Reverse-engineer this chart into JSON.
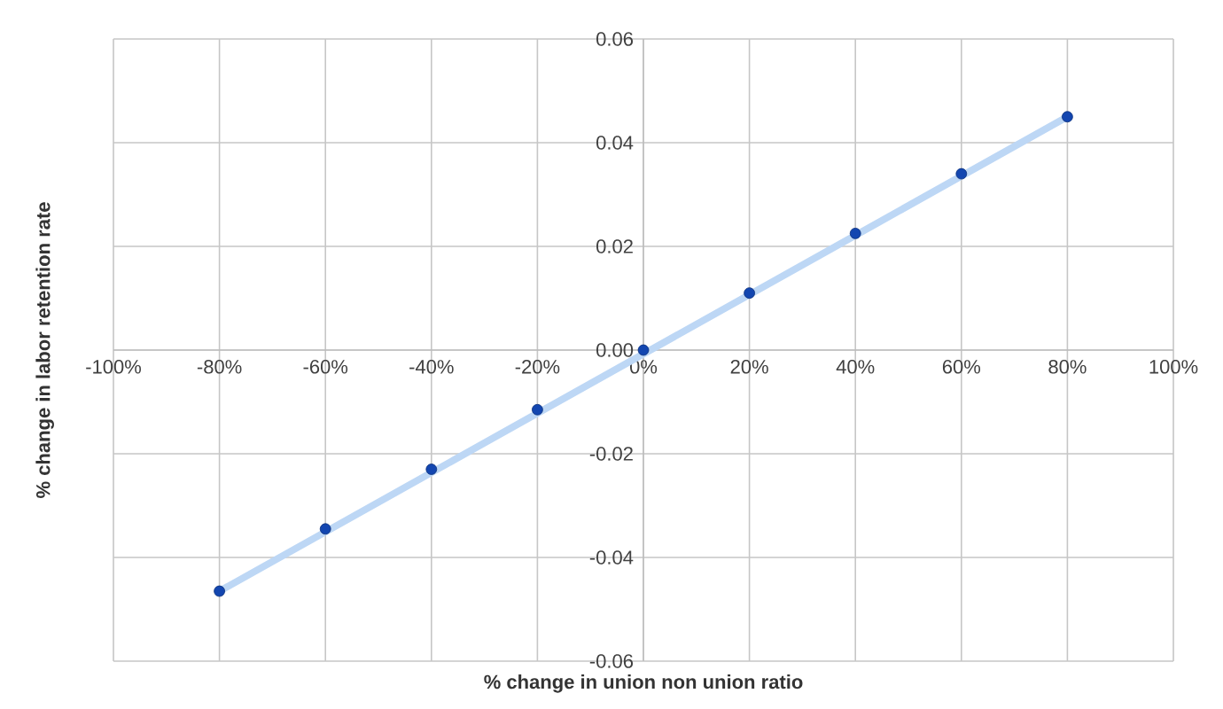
{
  "chart_data": {
    "type": "scatter",
    "xlabel": "% change in union non union ratio",
    "ylabel": "% change in labor retention rate",
    "xlim": [
      -100,
      100
    ],
    "ylim": [
      -0.06,
      0.06
    ],
    "xticks": [
      {
        "value": -100,
        "label": "-100%"
      },
      {
        "value": -80,
        "label": "-80%"
      },
      {
        "value": -60,
        "label": "-60%"
      },
      {
        "value": -40,
        "label": "-40%"
      },
      {
        "value": -20,
        "label": "-20%"
      },
      {
        "value": 0,
        "label": "0%"
      },
      {
        "value": 20,
        "label": "20%"
      },
      {
        "value": 40,
        "label": "40%"
      },
      {
        "value": 60,
        "label": "60%"
      },
      {
        "value": 80,
        "label": "80%"
      },
      {
        "value": 100,
        "label": "100%"
      }
    ],
    "yticks": [
      -0.06,
      -0.04,
      -0.02,
      {
        "value": 0,
        "label": "0.00"
      },
      0.02,
      0.04,
      0.06
    ],
    "grid": true,
    "marker": "circle",
    "series": [
      {
        "type": "line",
        "color": "#bdd7f5",
        "marker": "none",
        "line_style": "solid",
        "x": [
          -80,
          80
        ],
        "values": [
          -0.0465,
          0.045
        ]
      },
      {
        "color": "#1346b0",
        "x": [
          -80,
          -60,
          -40,
          -20,
          0,
          20,
          40,
          60,
          80
        ],
        "values": [
          -0.0465,
          -0.0345,
          -0.023,
          -0.0115,
          0,
          0.011,
          0.0225,
          0.034,
          0.045
        ]
      }
    ]
  }
}
